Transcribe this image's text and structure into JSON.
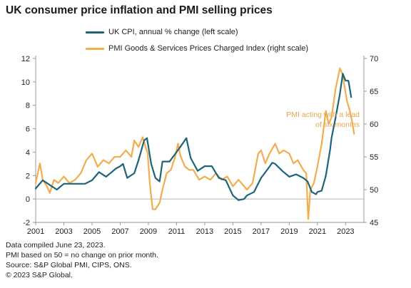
{
  "title": "UK consumer price inflation and PMI selling prices",
  "footnotes": [
    "Data compiled June 23, 2023.",
    "PMI based on 50 = no change on prior month.",
    "Source: S&P Global PMI, CIPS, ONS.",
    "© 2023 S&P Global."
  ],
  "colors": {
    "cpi": "#1d6478",
    "pmi": "#f2ad4e",
    "annotation": "#e9a64a",
    "axis": "#999999",
    "text": "#222222"
  },
  "chart_data": {
    "type": "line",
    "grid": false,
    "legend_position": "top",
    "annotation": [
      "PMI acting with a lead",
      "of six months"
    ],
    "x_tick_labels": [
      "2001",
      "2003",
      "2005",
      "2007",
      "2009",
      "2011",
      "2013",
      "2015",
      "2017",
      "2019",
      "2021",
      "2023"
    ],
    "xlim": [
      2001,
      2024.3
    ],
    "left_axis": {
      "ylim": [
        -2,
        12
      ],
      "ticks": [
        "-2",
        "0",
        "2",
        "4",
        "6",
        "8",
        "10",
        "12"
      ]
    },
    "right_axis": {
      "ylim": [
        45,
        70
      ],
      "ticks": [
        "45",
        "50",
        "55",
        "60",
        "65",
        "70"
      ]
    },
    "series": [
      {
        "name": "UK CPI, annual % change (left scale)",
        "axis": "left",
        "x": [
          2001.0,
          2001.5,
          2002.0,
          2002.5,
          2003.0,
          2003.5,
          2004.0,
          2004.5,
          2005.0,
          2005.5,
          2006.0,
          2006.5,
          2006.7,
          2007.0,
          2007.2,
          2007.5,
          2008.0,
          2008.3,
          2008.7,
          2008.9,
          2009.2,
          2009.5,
          2009.8,
          2010.0,
          2010.5,
          2011.0,
          2011.3,
          2011.7,
          2012.0,
          2012.5,
          2013.0,
          2013.5,
          2014.0,
          2014.5,
          2015.0,
          2015.4,
          2015.8,
          2016.0,
          2016.5,
          2017.0,
          2017.5,
          2017.8,
          2018.0,
          2018.5,
          2019.0,
          2019.5,
          2020.0,
          2020.3,
          2020.6,
          2020.9,
          2021.0,
          2021.3,
          2021.6,
          2021.9,
          2022.0,
          2022.3,
          2022.6,
          2022.8,
          2023.0,
          2023.2,
          2023.4
        ],
        "values": [
          0.9,
          1.6,
          1.2,
          0.8,
          1.3,
          1.3,
          1.3,
          1.3,
          1.6,
          2.3,
          1.9,
          2.4,
          2.6,
          2.8,
          3.0,
          1.8,
          2.2,
          3.3,
          5.0,
          5.2,
          3.0,
          1.8,
          1.5,
          3.2,
          3.2,
          4.0,
          4.5,
          5.2,
          3.5,
          2.4,
          2.8,
          2.8,
          1.8,
          1.6,
          0.3,
          -0.1,
          0.0,
          0.3,
          0.6,
          1.8,
          2.6,
          3.1,
          3.0,
          2.4,
          1.9,
          2.1,
          1.8,
          1.5,
          0.6,
          0.4,
          0.6,
          0.7,
          2.0,
          4.2,
          5.2,
          7.0,
          9.0,
          10.7,
          10.1,
          10.1,
          8.7
        ]
      },
      {
        "name": "PMI Goods & Services Prices Charged Index (right scale)",
        "axis": "right",
        "x": [
          2001.0,
          2001.3,
          2001.5,
          2001.8,
          2002.0,
          2002.3,
          2002.6,
          2003.0,
          2003.4,
          2003.8,
          2004.2,
          2004.6,
          2005.0,
          2005.4,
          2005.8,
          2006.2,
          2006.6,
          2007.0,
          2007.4,
          2007.8,
          2008.0,
          2008.3,
          2008.6,
          2008.8,
          2008.95,
          2009.1,
          2009.3,
          2009.5,
          2009.8,
          2010.0,
          2010.3,
          2010.6,
          2010.9,
          2011.1,
          2011.3,
          2011.6,
          2011.9,
          2012.2,
          2012.6,
          2013.0,
          2013.4,
          2013.8,
          2014.2,
          2014.6,
          2015.0,
          2015.4,
          2015.8,
          2016.0,
          2016.4,
          2016.8,
          2017.0,
          2017.3,
          2017.6,
          2018.0,
          2018.3,
          2018.6,
          2019.0,
          2019.3,
          2019.6,
          2020.0,
          2020.2,
          2020.35,
          2020.5,
          2020.75,
          2021.0,
          2021.3,
          2021.6,
          2021.8,
          2022.0,
          2022.3,
          2022.6,
          2022.8,
          2022.9,
          2023.1,
          2023.3,
          2023.5,
          2023.6
        ],
        "values": [
          51.0,
          54.0,
          51.5,
          50.5,
          49.5,
          51.5,
          51.0,
          52.0,
          51.0,
          51.5,
          52.5,
          54.5,
          55.5,
          53.5,
          54.5,
          54.0,
          55.0,
          55.0,
          56.0,
          55.0,
          57.5,
          56.5,
          58.0,
          56.5,
          55.5,
          51.0,
          47.0,
          47.0,
          48.0,
          50.0,
          52.5,
          53.0,
          55.0,
          57.0,
          55.0,
          53.5,
          53.0,
          53.0,
          51.5,
          52.0,
          51.5,
          52.5,
          51.5,
          52.0,
          50.5,
          51.5,
          50.5,
          50.0,
          51.0,
          55.5,
          56.0,
          54.0,
          55.5,
          57.0,
          55.5,
          56.0,
          55.5,
          54.0,
          54.5,
          53.0,
          52.5,
          45.5,
          50.0,
          51.0,
          53.5,
          57.0,
          62.0,
          60.0,
          61.0,
          65.5,
          68.5,
          67.5,
          66.0,
          63.5,
          62.0,
          60.0,
          58.5
        ]
      }
    ]
  }
}
